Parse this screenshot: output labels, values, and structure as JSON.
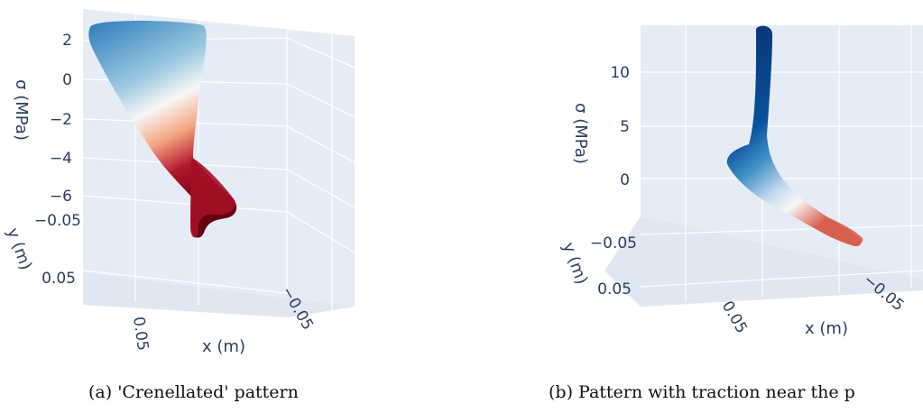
{
  "panels": [
    {
      "id": "a",
      "caption": "(a) 'Crenellated' pattern",
      "chart_data": {
        "type": "scatter",
        "projection": "3d",
        "axes": {
          "z": {
            "label": "σ (MPa)",
            "ticks": [
              "2",
              "0",
              "−2",
              "−4",
              "−6"
            ],
            "range": [
              -7,
              3
            ]
          },
          "y": {
            "label": "y (m)",
            "ticks": [
              "−0.05",
              "0.05"
            ]
          },
          "x": {
            "label": "x (m)",
            "ticks": [
              "0.05",
              "−0.05"
            ]
          }
        },
        "colorscale": [
          "#08306b",
          "#2166ac",
          "#6baed6",
          "#f7f7f7",
          "#ef8a62",
          "#b2182b",
          "#67000d"
        ],
        "grid": true,
        "background": "#e5ecf6"
      }
    },
    {
      "id": "b",
      "caption": "(b) Pattern with traction near the p",
      "chart_data": {
        "type": "scatter",
        "projection": "3d",
        "axes": {
          "z": {
            "label": "σ (MPa)",
            "ticks": [
              "10",
              "5",
              "0"
            ],
            "range": [
              -3,
              14
            ]
          },
          "y": {
            "label": "y (m)",
            "ticks": [
              "−0.05",
              "0.05"
            ]
          },
          "x": {
            "label": "x (m)",
            "ticks": [
              "0.05",
              "−0.05"
            ]
          }
        },
        "colorscale": [
          "#08306b",
          "#2166ac",
          "#6baed6",
          "#f7f7f7",
          "#ef8a62",
          "#b2182b",
          "#67000d"
        ],
        "grid": true,
        "background": "#e5ecf6"
      }
    }
  ]
}
